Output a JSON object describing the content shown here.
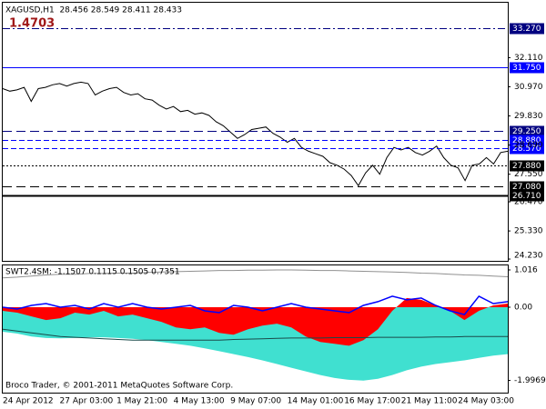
{
  "chart_data": [
    {
      "type": "line",
      "title": "XAGUSD,H1  28.456 28.549 28.411 28.433",
      "annotation": "1.4703",
      "categories": [
        "24 Apr 2012",
        null,
        null,
        null,
        null,
        null,
        null,
        null,
        "27 Apr 03:00",
        null,
        null,
        null,
        null,
        null,
        null,
        null,
        "1 May 21:00",
        null,
        null,
        null,
        null,
        null,
        null,
        null,
        "4 May 13:00",
        null,
        null,
        null,
        null,
        null,
        null,
        null,
        "9 May 07:00",
        null,
        null,
        null,
        null,
        null,
        null,
        null,
        "14 May 01:00",
        null,
        null,
        null,
        null,
        null,
        null,
        null,
        "16 May 17:00",
        null,
        null,
        null,
        null,
        null,
        null,
        null,
        "21 May 11:00",
        null,
        null,
        null,
        null,
        null,
        null,
        null,
        "24 May 03:00",
        null,
        null,
        null,
        null,
        null,
        null,
        null
      ],
      "series": [
        {
          "color": "#000000",
          "values": [
            30.9,
            30.8,
            30.85,
            30.95,
            30.4,
            30.9,
            30.95,
            31.05,
            31.1,
            31.0,
            31.1,
            31.15,
            31.1,
            30.65,
            30.8,
            30.9,
            30.95,
            30.75,
            30.65,
            30.7,
            30.5,
            30.45,
            30.25,
            30.1,
            30.2,
            30.0,
            30.05,
            29.9,
            29.95,
            29.85,
            29.6,
            29.45,
            29.2,
            28.95,
            29.1,
            29.3,
            29.35,
            29.4,
            29.15,
            29.0,
            28.8,
            28.95,
            28.6,
            28.45,
            28.35,
            28.25,
            28.0,
            27.9,
            27.75,
            27.5,
            27.1,
            27.6,
            27.9,
            27.55,
            28.2,
            28.6,
            28.5,
            28.6,
            28.4,
            28.3,
            28.45,
            28.65,
            28.2,
            27.9,
            27.8,
            27.3,
            27.9,
            27.95,
            28.2,
            27.95,
            28.4,
            28.45
          ]
        }
      ],
      "ylim": [
        24.16,
        34.26
      ],
      "yticks": [
        {
          "value": 32.11,
          "label": "32.110"
        },
        {
          "value": 30.97,
          "label": "30.970"
        },
        {
          "value": 29.83,
          "label": "29.830"
        },
        {
          "value": 28.69,
          "label": "28.690"
        },
        {
          "value": 27.55,
          "label": "27.550"
        },
        {
          "value": 26.47,
          "label": "26.470"
        },
        {
          "value": 25.33,
          "label": "25.330"
        },
        {
          "value": 24.23,
          "label": "24.230"
        }
      ],
      "levels": [
        {
          "value": 33.27,
          "label": "33.270",
          "color": "#000080",
          "style": "dashdot",
          "width": 1
        },
        {
          "value": 31.75,
          "label": "31.750",
          "color": "#0000ff",
          "style": "solid",
          "width": 1
        },
        {
          "value": 29.25,
          "label": "29.250",
          "color": "#000080",
          "style": "longdash",
          "width": 1
        },
        {
          "value": 28.88,
          "label": "28.880",
          "color": "#0000ff",
          "style": "dash",
          "width": 1
        },
        {
          "value": 28.57,
          "label": "28.570",
          "color": "#0000ff",
          "style": "dash",
          "width": 1
        },
        {
          "value": 27.88,
          "label": "27.880",
          "color": "#000000",
          "style": "dot",
          "width": 1
        },
        {
          "value": 27.08,
          "label": "27.080",
          "color": "#000000",
          "style": "longdash",
          "width": 1
        },
        {
          "value": 26.71,
          "label": "26.710",
          "color": "#000000",
          "style": "solid",
          "width": 2
        }
      ]
    },
    {
      "type": "area",
      "title": "SWT2.4SM: -1.1507 0.1115 0.1505 0.7351",
      "annotation": "Broco Trader, © 2001-2011 MetaQuotes Software Corp.",
      "series": [
        {
          "color": "#40e0d0",
          "style": "area",
          "values": [
            -0.67,
            -0.72,
            -0.8,
            -0.84,
            -0.85,
            -0.84,
            -0.82,
            -0.82,
            -0.84,
            -0.86,
            -0.9,
            -0.95,
            -1.0,
            -1.05,
            -1.12,
            -1.2,
            -1.28,
            -1.36,
            -1.45,
            -1.55,
            -1.65,
            -1.75,
            -1.85,
            -1.93,
            -1.98,
            -2.0,
            -1.95,
            -1.85,
            -1.72,
            -1.62,
            -1.55,
            -1.5,
            -1.45,
            -1.38,
            -1.32,
            -1.28
          ]
        },
        {
          "color": "#ff0000",
          "style": "area",
          "values": [
            -0.1,
            -0.15,
            -0.25,
            -0.35,
            -0.3,
            -0.15,
            -0.2,
            -0.1,
            -0.25,
            -0.2,
            -0.3,
            -0.4,
            -0.55,
            -0.6,
            -0.55,
            -0.7,
            -0.75,
            -0.6,
            -0.5,
            -0.45,
            -0.55,
            -0.8,
            -0.95,
            -1.0,
            -1.05,
            -0.9,
            -0.6,
            -0.1,
            0.25,
            0.2,
            0.05,
            -0.1,
            -0.35,
            -0.1,
            0.05,
            0.1
          ]
        },
        {
          "color": "#1a4a4a",
          "style": "line",
          "values": [
            -0.6,
            -0.65,
            -0.7,
            -0.75,
            -0.8,
            -0.82,
            -0.84,
            -0.86,
            -0.88,
            -0.9,
            -0.9,
            -0.9,
            -0.9,
            -0.9,
            -0.9,
            -0.9,
            -0.88,
            -0.87,
            -0.86,
            -0.85,
            -0.84,
            -0.84,
            -0.84,
            -0.83,
            -0.83,
            -0.83,
            -0.82,
            -0.82,
            -0.82,
            -0.82,
            -0.81,
            -0.81,
            -0.8,
            -0.8,
            -0.8,
            -0.8
          ]
        },
        {
          "color": "#909090",
          "style": "line",
          "values": [
            0.8,
            0.82,
            0.85,
            0.88,
            0.9,
            0.9,
            0.92,
            0.92,
            0.93,
            0.93,
            0.95,
            0.96,
            0.97,
            0.98,
            0.99,
            1.0,
            1.0,
            1.01,
            1.01,
            1.016,
            1.016,
            1.01,
            1.0,
            1.0,
            0.99,
            0.98,
            0.97,
            0.96,
            0.95,
            0.93,
            0.92,
            0.9,
            0.88,
            0.87,
            0.85,
            0.83
          ]
        },
        {
          "color": "#0000ff",
          "style": "line",
          "values": [
            0.0,
            -0.05,
            0.05,
            0.1,
            0.0,
            0.05,
            -0.05,
            0.1,
            0.0,
            0.1,
            0.0,
            -0.05,
            0.0,
            0.05,
            -0.1,
            -0.15,
            0.05,
            0.0,
            -0.1,
            0.0,
            0.1,
            0.0,
            -0.05,
            -0.1,
            -0.15,
            0.05,
            0.15,
            0.3,
            0.2,
            0.25,
            0.05,
            -0.1,
            -0.2,
            0.3,
            0.1,
            0.15
          ]
        }
      ],
      "ylim": [
        -2.33,
        1.14
      ],
      "yticks": [
        1.016,
        {
          "value": 0,
          "label": "0.00"
        },
        -1.9969
      ]
    }
  ]
}
